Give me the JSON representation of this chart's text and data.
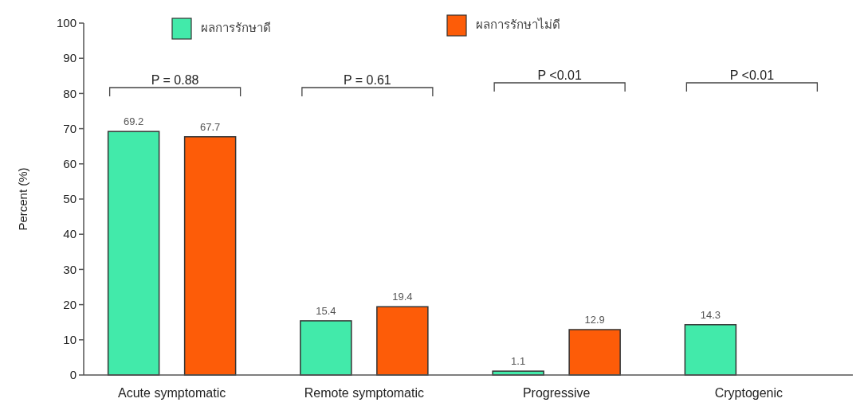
{
  "chart_data": {
    "type": "bar",
    "ylabel": "Percent (%)",
    "categories": [
      "Acute symptomatic",
      "Remote symptomatic",
      "Progressive",
      "Cryptogenic"
    ],
    "series": [
      {
        "name": "ผลการรักษาดี",
        "color": "#42eaaa",
        "values": [
          69.2,
          15.4,
          1.1,
          14.3
        ]
      },
      {
        "name": "ผลการรักษาไม่ดี",
        "color": "#fd5c08",
        "values": [
          67.7,
          19.4,
          12.9,
          null
        ]
      }
    ],
    "ylim": [
      0,
      100
    ],
    "yticks": [
      0,
      10,
      20,
      30,
      40,
      50,
      60,
      70,
      80,
      90,
      100
    ],
    "grid": false,
    "legend": "top",
    "data_labels": true,
    "annotations": [
      "P = 0.88",
      "P = 0.61",
      "P <0.01",
      "P <0.01"
    ]
  }
}
